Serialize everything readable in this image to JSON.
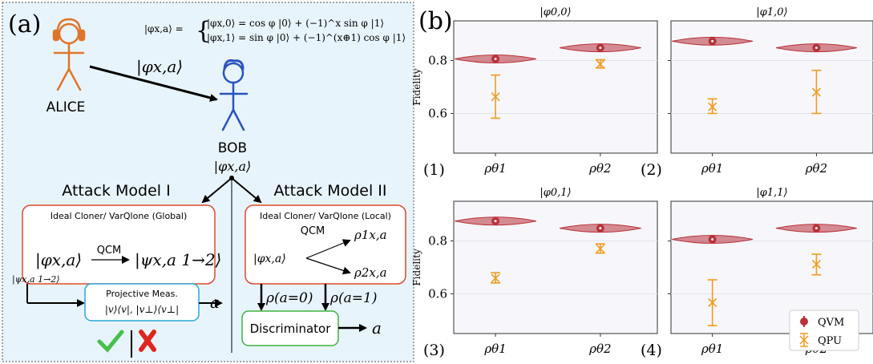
{
  "panel_a": {
    "label": "(a)",
    "alice": "ALICE",
    "bob": "BOB",
    "bob_state": "|φx,a⟩",
    "transmit_state": "|φx,a⟩",
    "formula_lhs": "|φx,a⟩ =",
    "formula_line1": "|φx,0⟩ = cos φ |0⟩ + (−1)^x sin φ |1⟩",
    "formula_line2": "|φx,1⟩ = sin φ |0⟩ + (−1)^(x⊕1) cos φ |1⟩",
    "attack1": {
      "title": "Attack Model I",
      "box_title": "Ideal Cloner/ VarQlone (Global)",
      "input": "|φx,a⟩",
      "op": "QCM",
      "output": "|ψx,a 1→2⟩"
    },
    "attack2": {
      "title": "Attack Model II",
      "box_title": "Ideal Cloner/ VarQlone (Local)",
      "op": "QCM",
      "input": "|φx,a⟩",
      "out1": "ρ1x,a",
      "out2": "ρ2x,a"
    },
    "side_state": "|ψx,a 1→2⟩",
    "proj_title": "Projective Meas.",
    "proj_ops": "|v⟩⟨v|, |v⊥⟩⟨v⊥|",
    "result_a1": "a",
    "rho0": "ρ(a=0)",
    "rho1": "ρ(a=1)",
    "discriminator": "Discriminator",
    "result_a2": "a",
    "check_icon": "check-icon",
    "cross_icon": "cross-icon",
    "colors": {
      "alice": "#e0752a",
      "bob": "#2a53c0",
      "bg": "#e8f4fb",
      "red_box": "#e04a2a",
      "blue_box": "#2aa7d8",
      "green_box": "#3db33d"
    }
  },
  "panel_b": {
    "label": "(b)",
    "legend": {
      "qvm": "QVM",
      "qpu": "QPU"
    },
    "colors": {
      "qvm": "#b8313a",
      "qpu": "#f39a1f"
    },
    "ylabel": "Fidelity"
  },
  "chart_data": [
    {
      "type": "violin",
      "index": "(1)",
      "title": "|φ0,0⟩",
      "categories": [
        "ρθ1",
        "ρθ2"
      ],
      "ylabel": "Fidelity",
      "ylim": [
        0.45,
        0.95
      ],
      "yticks": [
        0.6,
        0.8
      ],
      "series": [
        {
          "name": "QVM",
          "values": [
            0.806,
            0.848
          ]
        },
        {
          "name": "QPU",
          "values": [
            0.663,
            0.786
          ],
          "err_low": [
            0.582,
            0.772
          ],
          "err_high": [
            0.745,
            0.803
          ]
        }
      ]
    },
    {
      "type": "violin",
      "index": "(2)",
      "title": "|φ1,0⟩",
      "categories": [
        "ρθ1",
        "ρθ2"
      ],
      "ylabel": "",
      "ylim": [
        0.45,
        0.95
      ],
      "yticks": [
        0.6,
        0.8
      ],
      "series": [
        {
          "name": "QVM",
          "values": [
            0.873,
            0.848
          ]
        },
        {
          "name": "QPU",
          "values": [
            0.625,
            0.68
          ],
          "err_low": [
            0.6,
            0.6
          ],
          "err_high": [
            0.655,
            0.763
          ]
        }
      ]
    },
    {
      "type": "violin",
      "index": "(3)",
      "title": "|φ0,1⟩",
      "categories": [
        "ρθ1",
        "ρθ2"
      ],
      "ylabel": "Fidelity",
      "ylim": [
        0.45,
        0.95
      ],
      "yticks": [
        0.6,
        0.8
      ],
      "series": [
        {
          "name": "QVM",
          "values": [
            0.875,
            0.848
          ]
        },
        {
          "name": "QPU",
          "values": [
            0.659,
            0.771
          ],
          "err_low": [
            0.641,
            0.754
          ],
          "err_high": [
            0.68,
            0.789
          ]
        }
      ]
    },
    {
      "type": "violin",
      "index": "(4)",
      "title": "|φ1,1⟩",
      "categories": [
        "ρθ1",
        "ρθ2"
      ],
      "ylabel": "",
      "ylim": [
        0.45,
        0.95
      ],
      "yticks": [
        0.6,
        0.8
      ],
      "series": [
        {
          "name": "QVM",
          "values": [
            0.806,
            0.848
          ]
        },
        {
          "name": "QPU",
          "values": [
            0.567,
            0.712
          ],
          "err_low": [
            0.48,
            0.672
          ],
          "err_high": [
            0.653,
            0.75
          ]
        }
      ]
    }
  ]
}
